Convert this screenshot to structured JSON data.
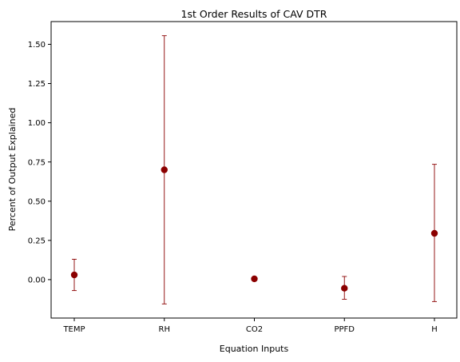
{
  "chart_data": {
    "type": "scatter",
    "title": "1st Order Results of CAV DTR",
    "xlabel": "Equation Inputs",
    "ylabel": "Percent of Output Explained",
    "categories": [
      "TEMP",
      "RH",
      "CO2",
      "PPFD",
      "H"
    ],
    "series": [
      {
        "values": [
          0.03,
          0.7,
          0.005,
          -0.055,
          0.295
        ],
        "error_low": [
          -0.07,
          -0.155,
          0.005,
          -0.125,
          -0.14
        ],
        "error_high": [
          0.13,
          1.555,
          0.005,
          0.02,
          0.735
        ],
        "color": "#8b0000"
      }
    ],
    "ylim": [
      -0.245,
      1.645
    ],
    "yticks": [
      0.0,
      0.25,
      0.5,
      0.75,
      1.0,
      1.25,
      1.5
    ],
    "ytick_labels": [
      "0.00",
      "0.25",
      "0.50",
      "0.75",
      "1.00",
      "1.25",
      "1.50"
    ],
    "grid": false,
    "legend": false
  }
}
